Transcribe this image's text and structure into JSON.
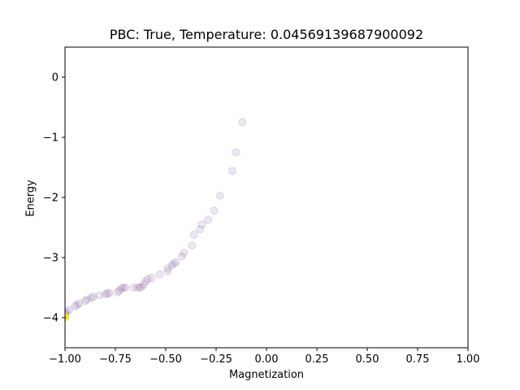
{
  "chart_data": {
    "type": "scatter",
    "title": "PBC: True, Temperature: 0.04569139687900092",
    "xlabel": "Magnetization",
    "ylabel": "Energy",
    "xlim": [
      -1.0,
      1.0
    ],
    "ylim": [
      -4.5,
      0.5
    ],
    "xticks": [
      "−1.00",
      "−0.75",
      "−0.50",
      "−0.25",
      "0.00",
      "0.25",
      "0.50",
      "0.75",
      "1.00"
    ],
    "yticks": [
      "−4",
      "−3",
      "−2",
      "−1",
      "0"
    ],
    "grid": false,
    "marker_color": "#6a3d8a",
    "marker_alpha": 0.12,
    "highlight_color": "#f0e020",
    "points": [
      {
        "x": -0.12,
        "y": -0.75
      },
      {
        "x": -0.15,
        "y": -1.25
      },
      {
        "x": -0.17,
        "y": -1.56
      },
      {
        "x": -0.23,
        "y": -1.97
      },
      {
        "x": -0.26,
        "y": -2.22
      },
      {
        "x": -0.29,
        "y": -2.37
      },
      {
        "x": -0.32,
        "y": -2.45
      },
      {
        "x": -0.33,
        "y": -2.53
      },
      {
        "x": -0.36,
        "y": -2.62
      },
      {
        "x": -0.37,
        "y": -2.8
      },
      {
        "x": -0.41,
        "y": -2.92
      },
      {
        "x": -0.42,
        "y": -2.98
      },
      {
        "x": -0.45,
        "y": -3.08
      },
      {
        "x": -0.46,
        "y": -3.1
      },
      {
        "x": -0.47,
        "y": -3.13
      },
      {
        "x": -0.49,
        "y": -3.18
      },
      {
        "x": -0.49,
        "y": -3.23
      },
      {
        "x": -0.53,
        "y": -3.28
      },
      {
        "x": -0.57,
        "y": -3.34
      },
      {
        "x": -0.59,
        "y": -3.36
      },
      {
        "x": -0.6,
        "y": -3.4
      },
      {
        "x": -0.61,
        "y": -3.45
      },
      {
        "x": -0.62,
        "y": -3.49
      },
      {
        "x": -0.63,
        "y": -3.5
      },
      {
        "x": -0.64,
        "y": -3.5
      },
      {
        "x": -0.66,
        "y": -3.5
      },
      {
        "x": -0.7,
        "y": -3.5
      },
      {
        "x": -0.71,
        "y": -3.5
      },
      {
        "x": -0.72,
        "y": -3.51
      },
      {
        "x": -0.73,
        "y": -3.55
      },
      {
        "x": -0.74,
        "y": -3.58
      },
      {
        "x": -0.78,
        "y": -3.59
      },
      {
        "x": -0.79,
        "y": -3.6
      },
      {
        "x": -0.8,
        "y": -3.61
      },
      {
        "x": -0.83,
        "y": -3.63
      },
      {
        "x": -0.86,
        "y": -3.65
      },
      {
        "x": -0.87,
        "y": -3.67
      },
      {
        "x": -0.89,
        "y": -3.7
      },
      {
        "x": -0.9,
        "y": -3.72
      },
      {
        "x": -0.93,
        "y": -3.76
      },
      {
        "x": -0.94,
        "y": -3.79
      },
      {
        "x": -0.95,
        "y": -3.81
      },
      {
        "x": -0.98,
        "y": -3.87
      },
      {
        "x": -0.99,
        "y": -3.9
      },
      {
        "x": -1.0,
        "y": -3.92
      },
      {
        "x": -1.0,
        "y": -3.95
      }
    ],
    "highlight_points": [
      {
        "x": -1.0,
        "y": -3.99
      }
    ]
  }
}
